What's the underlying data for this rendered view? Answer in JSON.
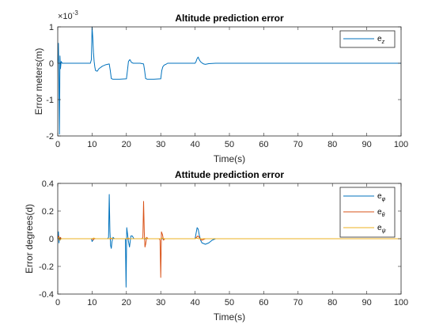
{
  "chart_data": [
    {
      "type": "line",
      "title": "Altitude prediction error",
      "xlabel": "Time(s)",
      "ylabel": "Error meters(m)",
      "y_exponent_label": "×10",
      "y_exponent_power": "-3",
      "xlim": [
        0,
        100
      ],
      "ylim": [
        -2,
        1
      ],
      "xticks": [
        "0",
        "10",
        "20",
        "30",
        "40",
        "50",
        "60",
        "70",
        "80",
        "90",
        "100"
      ],
      "yticks": [
        "-2",
        "-1",
        "0",
        "1"
      ],
      "grid": false,
      "legend_position": "top-right",
      "series": [
        {
          "name": "e",
          "name_sub": "z",
          "color": "#0072BD",
          "x": [
            0,
            0.2,
            0.35,
            0.5,
            0.65,
            0.8,
            1.0,
            1.3,
            2,
            9.5,
            9.8,
            10.0,
            10.2,
            10.4,
            10.6,
            10.8,
            11,
            11.5,
            12,
            13,
            14,
            15,
            15.3,
            15.6,
            16,
            18,
            20,
            20.3,
            20.6,
            21,
            21.5,
            22,
            23,
            24,
            25,
            25.3,
            25.6,
            26,
            28,
            30,
            30.3,
            30.6,
            31,
            31.5,
            32,
            33,
            34,
            35,
            40,
            40.3,
            40.6,
            40.9,
            41.2,
            41.6,
            42,
            42.5,
            43,
            44,
            46,
            100
          ],
          "y": [
            0,
            0.55,
            -0.5,
            -1.95,
            0.2,
            -0.15,
            0.05,
            0,
            0,
            0,
            0.1,
            1.0,
            0.7,
            0.3,
            0.05,
            -0.1,
            -0.2,
            -0.22,
            -0.15,
            -0.08,
            -0.04,
            -0.02,
            -0.2,
            -0.42,
            -0.44,
            -0.44,
            -0.43,
            -0.2,
            0.05,
            0.1,
            0.02,
            0,
            0,
            0,
            -0.02,
            -0.2,
            -0.42,
            -0.44,
            -0.44,
            -0.43,
            -0.2,
            -0.1,
            -0.05,
            -0.03,
            0,
            0,
            0,
            0,
            0,
            0.05,
            0.13,
            0.17,
            0.1,
            0.04,
            0.01,
            -0.02,
            -0.03,
            -0.01,
            0,
            0
          ]
        }
      ]
    },
    {
      "type": "line",
      "title": "Attitude prediction error",
      "xlabel": "Time(s)",
      "ylabel": "Error degrees(d)",
      "xlim": [
        0,
        100
      ],
      "ylim": [
        -0.4,
        0.4
      ],
      "xticks": [
        "0",
        "10",
        "20",
        "30",
        "40",
        "50",
        "60",
        "70",
        "80",
        "90",
        "100"
      ],
      "yticks": [
        "-0.4",
        "-0.2",
        "0",
        "0.2",
        "0.4"
      ],
      "grid": false,
      "legend_position": "top-right",
      "series": [
        {
          "name": "e",
          "name_sub": "φ",
          "color": "#0072BD",
          "x": [
            0,
            0.2,
            0.35,
            0.5,
            0.7,
            1.0,
            9.8,
            10.0,
            10.3,
            10.6,
            11,
            14.5,
            14.8,
            15.0,
            15.2,
            15.4,
            15.6,
            15.8,
            16.1,
            16.5,
            17,
            19.7,
            19.9,
            20.1,
            20.3,
            20.6,
            20.9,
            21.3,
            21.7,
            22.2,
            23,
            40,
            40.3,
            40.6,
            40.9,
            41.2,
            41.6,
            42,
            43,
            44,
            45,
            46,
            47,
            100
          ],
          "y": [
            0,
            0.05,
            -0.03,
            0.01,
            -0.01,
            0,
            0,
            -0.02,
            -0.01,
            0,
            0,
            0,
            0.01,
            0.32,
            0.05,
            -0.05,
            -0.07,
            -0.02,
            0.01,
            0,
            0,
            0,
            -0.35,
            0.08,
            0.04,
            -0.02,
            -0.06,
            0.02,
            0.02,
            0,
            0,
            0,
            0.04,
            0.08,
            0.07,
            0.03,
            -0.01,
            -0.03,
            -0.04,
            -0.03,
            -0.01,
            0,
            0,
            0
          ]
        },
        {
          "name": "e",
          "name_sub": "θ",
          "color": "#D95319",
          "x": [
            0,
            0.3,
            0.5,
            0.8,
            1.0,
            10,
            10.3,
            10.6,
            11,
            24.5,
            24.8,
            25.0,
            25.2,
            25.4,
            25.6,
            25.9,
            26.3,
            27,
            29.5,
            29.8,
            30.0,
            30.2,
            30.5,
            30.8,
            31.2,
            32,
            40,
            40.4,
            40.8,
            41.2,
            41.6,
            42,
            43,
            100
          ],
          "y": [
            0,
            0.02,
            -0.01,
            0.01,
            0,
            0,
            -0.01,
            0,
            0,
            0,
            0.01,
            0.27,
            0.05,
            -0.06,
            -0.04,
            0.01,
            0,
            0,
            0,
            -0.01,
            -0.28,
            0.05,
            0.03,
            -0.01,
            0,
            0,
            0,
            0.01,
            0.02,
            0.01,
            -0.005,
            -0.01,
            0,
            0
          ]
        },
        {
          "name": "e",
          "name_sub": "ψ",
          "color": "#EDB120",
          "x": [
            0,
            0.3,
            0.6,
            1.0,
            10,
            10.5,
            11,
            15,
            15.5,
            16,
            20,
            20.5,
            21,
            25,
            25.5,
            26,
            30,
            30.5,
            31,
            40,
            40.5,
            41,
            100
          ],
          "y": [
            0,
            0.01,
            -0.01,
            0,
            0,
            0.005,
            0,
            0,
            0.005,
            0,
            0,
            0.005,
            0,
            0,
            0.005,
            0,
            0,
            0.005,
            0,
            0,
            0.005,
            0,
            0
          ]
        }
      ]
    }
  ]
}
